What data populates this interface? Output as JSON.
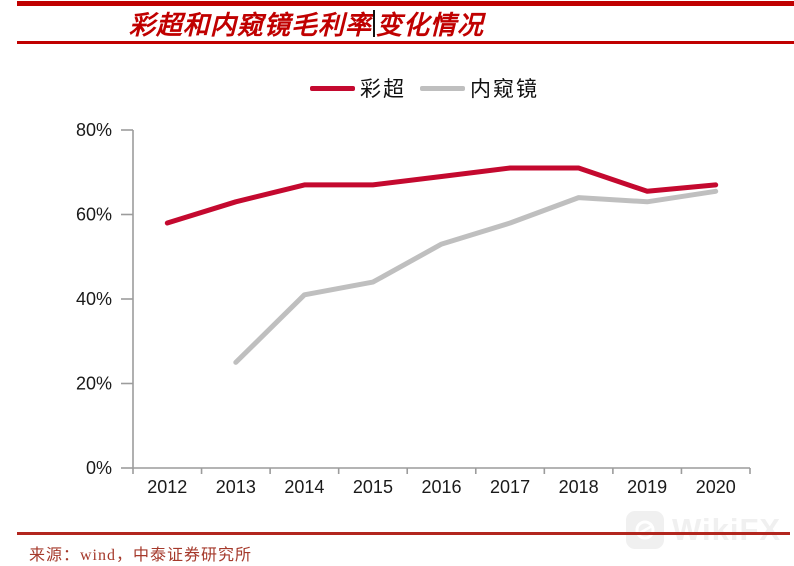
{
  "header": {
    "title_full": "彩超和内窥镜毛利率变化情况",
    "title_part1": "彩超和内窥镜毛利率",
    "title_part2": "变化情况"
  },
  "colors": {
    "accent_red": "#C00000",
    "series_red": "#C4092F",
    "series_gray": "#BFBFBF",
    "axis": "#9C9C9C",
    "label": "#1A1A1A",
    "footer_line": "#B2261E",
    "footer_text": "#A5392B",
    "watermark": "#F0F0F0"
  },
  "legend": {
    "items": [
      {
        "label": "彩超",
        "color": "#C4092F"
      },
      {
        "label": "内窥镜",
        "color": "#BFBFBF"
      }
    ]
  },
  "footer": {
    "source_text": "来源：wind，中泰证券研究所"
  },
  "watermark": {
    "text": "WikiFX",
    "logo_icon": "wikifx-globe-logo"
  },
  "chart_data": {
    "type": "line",
    "title": "彩超和内窥镜毛利率变化情况",
    "categories": [
      "2012",
      "2013",
      "2014",
      "2015",
      "2016",
      "2017",
      "2018",
      "2019",
      "2020"
    ],
    "series": [
      {
        "name": "彩超",
        "color": "#C4092F",
        "values": [
          58,
          63,
          67,
          67,
          69,
          71,
          71,
          65.5,
          67
        ]
      },
      {
        "name": "内窥镜",
        "color": "#BFBFBF",
        "values": [
          null,
          25,
          41,
          44,
          53,
          58,
          64,
          63,
          65.5
        ]
      }
    ],
    "ylim": [
      0,
      80
    ],
    "ytick_step": 20,
    "ytick_labels": [
      "0%",
      "20%",
      "40%",
      "60%",
      "80%"
    ],
    "xlabel": "",
    "ylabel": "",
    "units": "percent",
    "grid": false,
    "legend_position": "top-center"
  }
}
